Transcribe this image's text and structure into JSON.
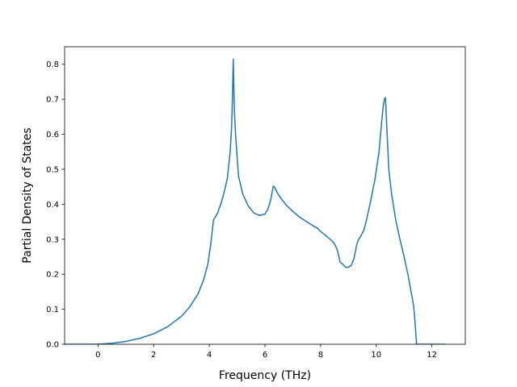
{
  "chart_data": {
    "type": "line",
    "title": "",
    "xlabel": "Frequency (THz)",
    "ylabel": "Partial Density of States",
    "xlim": [
      -1.2,
      13.2
    ],
    "ylim": [
      0.0,
      0.85
    ],
    "xticks": [
      0,
      2,
      4,
      6,
      8,
      10,
      12
    ],
    "yticks": [
      0.0,
      0.1,
      0.2,
      0.3,
      0.4,
      0.5,
      0.6,
      0.7,
      0.8
    ],
    "xtick_labels": [
      "0",
      "2",
      "4",
      "6",
      "8",
      "10",
      "12"
    ],
    "ytick_labels": [
      "0.0",
      "0.1",
      "0.2",
      "0.3",
      "0.4",
      "0.5",
      "0.6",
      "0.7",
      "0.8"
    ],
    "grid": false,
    "series": [
      {
        "color": "#1f77b4",
        "x": [
          -1.2,
          -0.5,
          0.0,
          0.5,
          1.0,
          1.5,
          2.0,
          2.5,
          3.0,
          3.3,
          3.6,
          3.8,
          3.95,
          4.05,
          4.15,
          4.3,
          4.45,
          4.55,
          4.65,
          4.75,
          4.8,
          4.83,
          4.86,
          4.9,
          4.95,
          5.05,
          5.2,
          5.4,
          5.6,
          5.8,
          6.0,
          6.1,
          6.2,
          6.3,
          6.35,
          6.45,
          6.6,
          6.8,
          7.0,
          7.2,
          7.4,
          7.6,
          7.8,
          7.9,
          8.0,
          8.2,
          8.4,
          8.5,
          8.6,
          8.7,
          8.8,
          8.9,
          9.0,
          9.1,
          9.2,
          9.3,
          9.35,
          9.45,
          9.55,
          9.65,
          9.8,
          9.95,
          10.1,
          10.2,
          10.25,
          10.3,
          10.33,
          10.38,
          10.45,
          10.55,
          10.7,
          10.85,
          11.0,
          11.15,
          11.25,
          11.3,
          11.35,
          11.4,
          11.45,
          11.5,
          11.7,
          12.0,
          12.5
        ],
        "y": [
          0.0,
          0.0,
          0.0,
          0.003,
          0.008,
          0.017,
          0.03,
          0.05,
          0.08,
          0.107,
          0.145,
          0.185,
          0.23,
          0.285,
          0.355,
          0.375,
          0.41,
          0.44,
          0.475,
          0.55,
          0.62,
          0.7,
          0.815,
          0.67,
          0.59,
          0.48,
          0.43,
          0.395,
          0.375,
          0.368,
          0.372,
          0.385,
          0.41,
          0.452,
          0.448,
          0.432,
          0.414,
          0.395,
          0.38,
          0.366,
          0.355,
          0.345,
          0.335,
          0.331,
          0.322,
          0.31,
          0.296,
          0.287,
          0.27,
          0.235,
          0.228,
          0.22,
          0.22,
          0.225,
          0.245,
          0.285,
          0.297,
          0.31,
          0.325,
          0.355,
          0.41,
          0.47,
          0.55,
          0.64,
          0.68,
          0.702,
          0.705,
          0.62,
          0.5,
          0.43,
          0.355,
          0.3,
          0.25,
          0.195,
          0.15,
          0.13,
          0.105,
          0.055,
          0.0,
          0.0,
          0.0,
          0.0,
          0.0
        ]
      }
    ]
  }
}
